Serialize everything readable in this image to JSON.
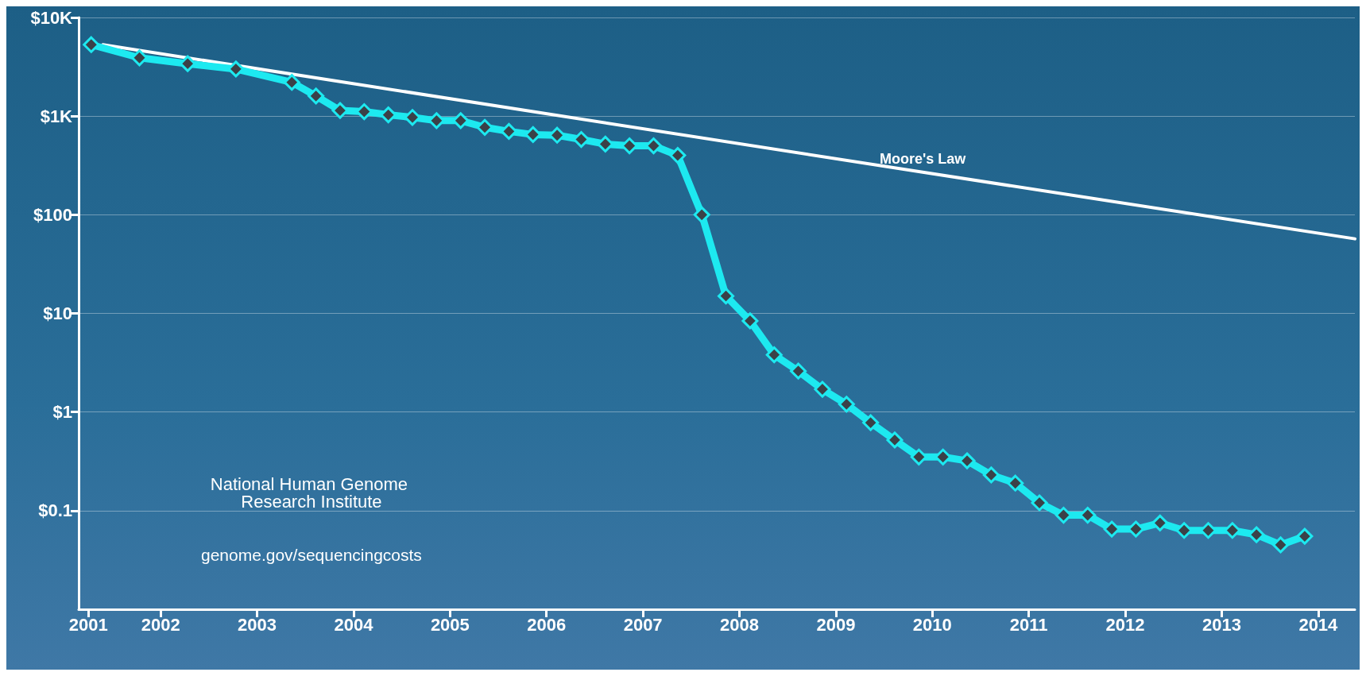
{
  "chart_data": {
    "type": "line",
    "x": [
      2001.28,
      2001.78,
      2002.28,
      2002.78,
      2003.36,
      2003.61,
      2003.86,
      2004.11,
      2004.36,
      2004.61,
      2004.86,
      2005.11,
      2005.36,
      2005.61,
      2005.86,
      2006.11,
      2006.36,
      2006.61,
      2006.86,
      2007.11,
      2007.36,
      2007.61,
      2007.86,
      2008.11,
      2008.36,
      2008.61,
      2008.86,
      2009.11,
      2009.36,
      2009.61,
      2009.86,
      2010.11,
      2010.36,
      2010.61,
      2010.86,
      2011.11,
      2011.36,
      2011.61,
      2011.86,
      2012.11,
      2012.36,
      2012.61,
      2012.86,
      2013.11,
      2013.36,
      2013.61,
      2013.86
    ],
    "series": [
      {
        "color": "#1de9f0",
        "marker": "diamond",
        "values": [
          5300,
          3900,
          3400,
          3000,
          2200,
          1600,
          1140,
          1110,
          1030,
          970,
          900,
          900,
          770,
          700,
          650,
          640,
          580,
          520,
          500,
          500,
          400,
          100,
          15,
          8.4,
          3.8,
          2.6,
          1.7,
          1.2,
          0.78,
          0.52,
          0.35,
          0.35,
          0.32,
          0.23,
          0.19,
          0.12,
          0.09,
          0.09,
          0.065,
          0.065,
          0.075,
          0.063,
          0.063,
          0.063,
          0.057,
          0.045,
          0.055
        ]
      },
      {
        "name": "Moore's Law",
        "color": "#ffffff",
        "marker": "none",
        "x": [
          2001.4,
          2009.9,
          2014.38
        ],
        "values": [
          5300,
          270,
          57
        ]
      }
    ],
    "xlim": [
      2001.15,
      2014.38
    ],
    "xticks": [
      {
        "value": 2001.25,
        "label": "2001"
      },
      2002,
      2003,
      2004,
      2005,
      2006,
      2007,
      2008,
      2009,
      2010,
      2011,
      2012,
      2013,
      2014
    ],
    "ylim": [
      0.01,
      10000
    ],
    "yticks": [
      {
        "value": 0.1,
        "label": "$0.1"
      },
      {
        "value": 1,
        "label": "$1"
      },
      {
        "value": 10,
        "label": "$10"
      },
      {
        "value": 100,
        "label": "$100"
      },
      {
        "value": 1000,
        "label": "$1K"
      },
      {
        "value": 10000,
        "label": "$10K"
      }
    ],
    "log": "y",
    "grid": "y",
    "legend": false,
    "annotations": [
      "National Human Genome Research Institute",
      "genome.gov/sequencingcosts"
    ]
  }
}
